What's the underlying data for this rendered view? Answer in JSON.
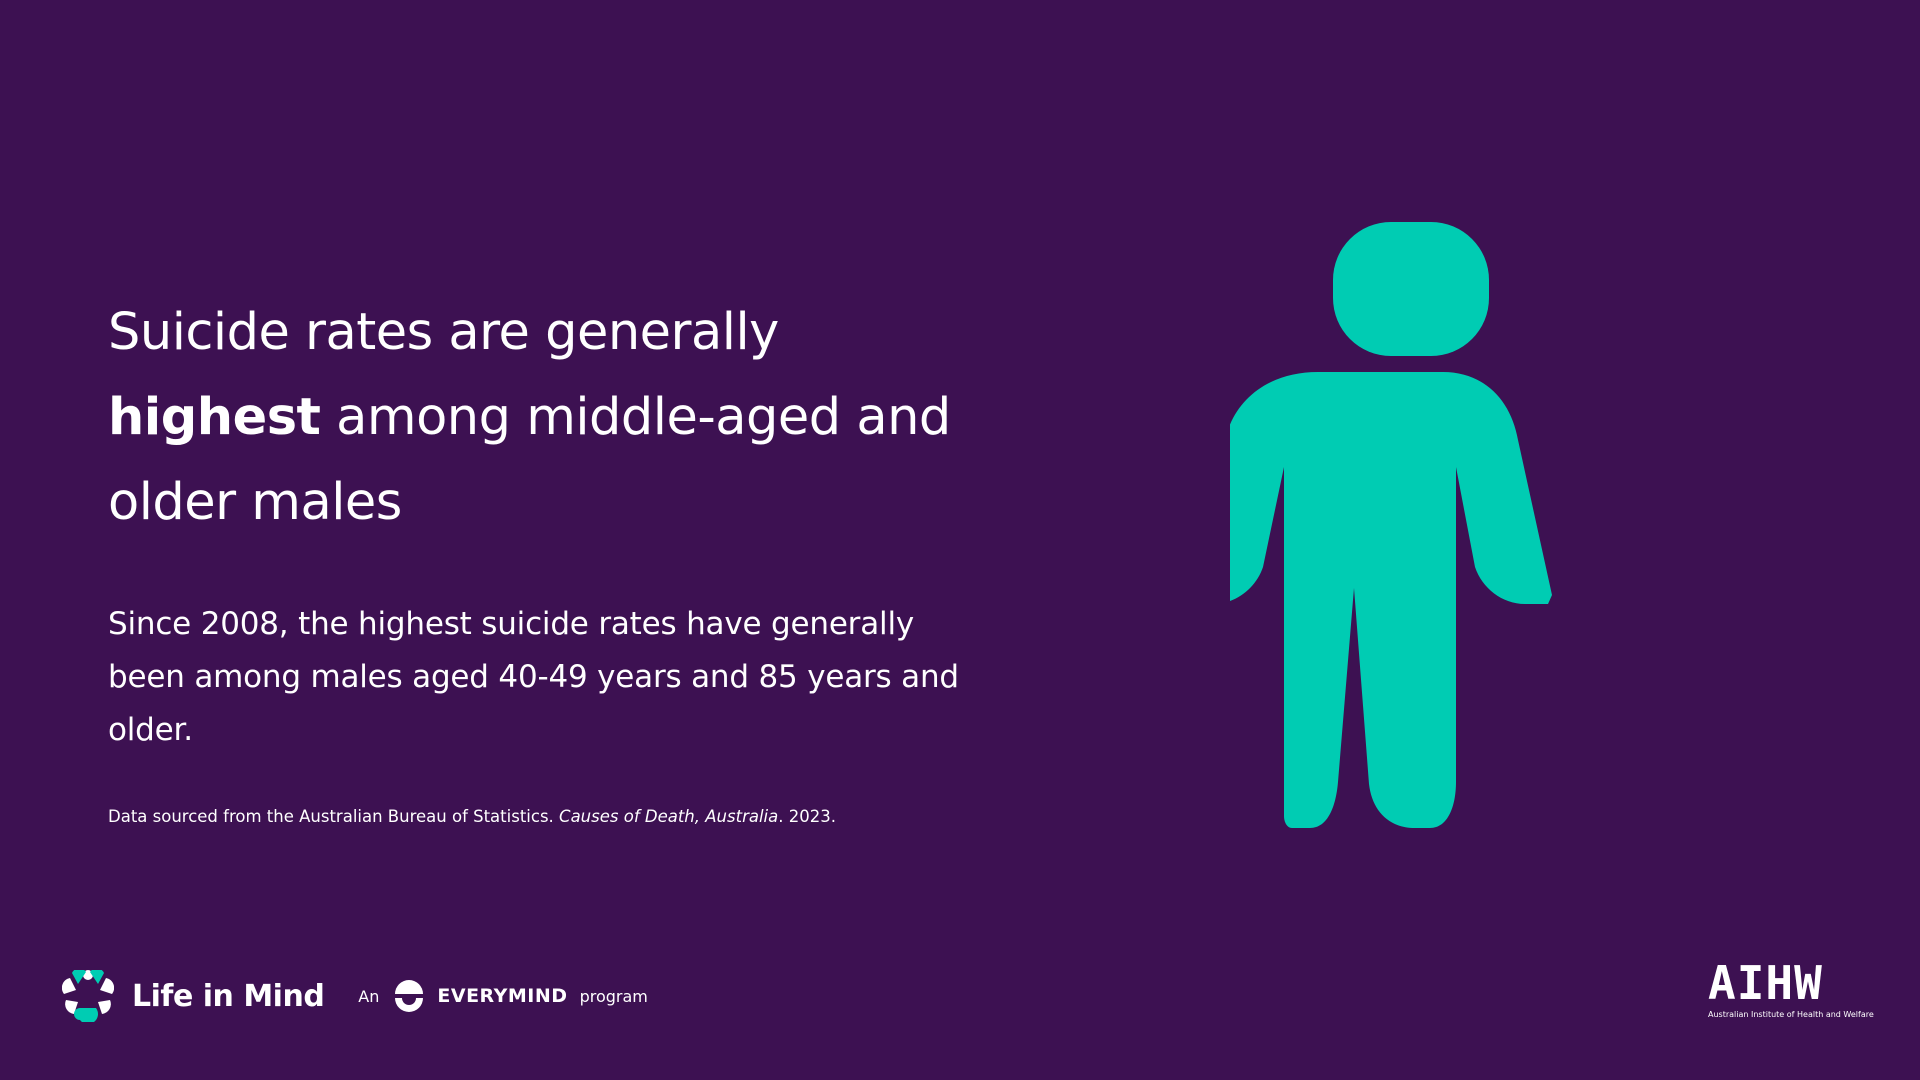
{
  "headline": {
    "line1": "Suicide rates are generally",
    "bold": "highest",
    "line2_rest": " among middle-aged and",
    "line3": "older males"
  },
  "body": {
    "text": "Since 2008, the highest suicide rates have generally been among males aged 40-49 years and 85 years and older."
  },
  "source": {
    "prefix": "Data sourced from the Australian Bureau of Statistics. ",
    "title": "Causes of Death, Australia",
    "suffix": ". 2023."
  },
  "figure": {
    "icon": "male-figure-icon",
    "color": "#00ccb3"
  },
  "footer": {
    "life_in_mind": "Life in Mind",
    "an": "An",
    "everymind": "EVERYMIND",
    "program": "program",
    "aihw": "AIHW",
    "aihw_full": "Australian Institute of Health and Welfare"
  },
  "colors": {
    "background": "#3d1152",
    "accent": "#00ccb3",
    "text": "#ffffff"
  }
}
